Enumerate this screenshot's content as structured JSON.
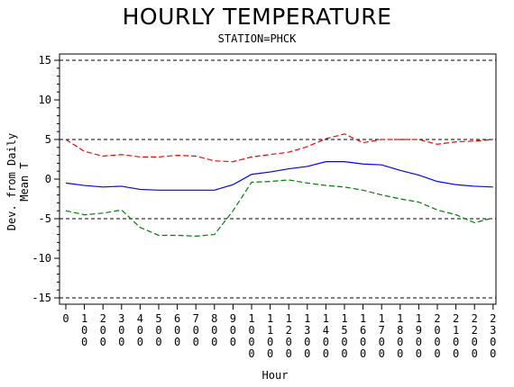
{
  "chart_data": {
    "type": "line",
    "title": "HOURLY TEMPERATURE",
    "subtitle": "STATION=PHCK",
    "xlabel": "Hour",
    "ylabel": "Dev. from Daily Mean T",
    "ylim": [
      -15,
      15
    ],
    "yticks": [
      "15",
      "10",
      "5",
      "0",
      "-5",
      "-10",
      "-15"
    ],
    "xticks": [
      "0",
      "100",
      "200",
      "300",
      "400",
      "500",
      "600",
      "700",
      "800",
      "900",
      "1000",
      "1100",
      "1200",
      "1300",
      "1400",
      "1500",
      "1600",
      "1700",
      "1800",
      "1900",
      "2000",
      "2100",
      "2200",
      "2300"
    ],
    "x": [
      0,
      100,
      200,
      300,
      400,
      500,
      600,
      700,
      800,
      900,
      1000,
      1100,
      1200,
      1300,
      1400,
      1500,
      1600,
      1700,
      1800,
      1900,
      2000,
      2100,
      2200,
      2300
    ],
    "reference_lines": [
      15,
      5,
      -5,
      -15
    ],
    "grid": false,
    "series": [
      {
        "color": "#ff0000",
        "dash": "dashed",
        "values": [
          5.0,
          3.5,
          2.9,
          3.1,
          2.8,
          2.8,
          3.0,
          2.9,
          2.3,
          2.2,
          2.8,
          3.1,
          3.4,
          4.1,
          5.1,
          5.7,
          4.6,
          5.0,
          5.0,
          5.0,
          4.4,
          4.7,
          4.8,
          5.0
        ]
      },
      {
        "color": "#0000ff",
        "dash": "solid",
        "values": [
          -0.5,
          -0.8,
          -1.0,
          -0.9,
          -1.3,
          -1.4,
          -1.4,
          -1.4,
          -1.4,
          -0.7,
          0.6,
          0.9,
          1.3,
          1.6,
          2.2,
          2.2,
          1.9,
          1.8,
          1.1,
          0.5,
          -0.3,
          -0.7,
          -0.9,
          -1.0
        ]
      },
      {
        "color": "#008000",
        "dash": "dashed",
        "values": [
          -4.0,
          -4.5,
          -4.3,
          -3.9,
          -6.1,
          -7.1,
          -7.1,
          -7.2,
          -7.0,
          -4.0,
          -0.4,
          -0.3,
          -0.1,
          -0.5,
          -0.8,
          -1.0,
          -1.4,
          -2.0,
          -2.5,
          -2.9,
          -3.9,
          -4.5,
          -5.5,
          -4.9
        ]
      }
    ]
  }
}
